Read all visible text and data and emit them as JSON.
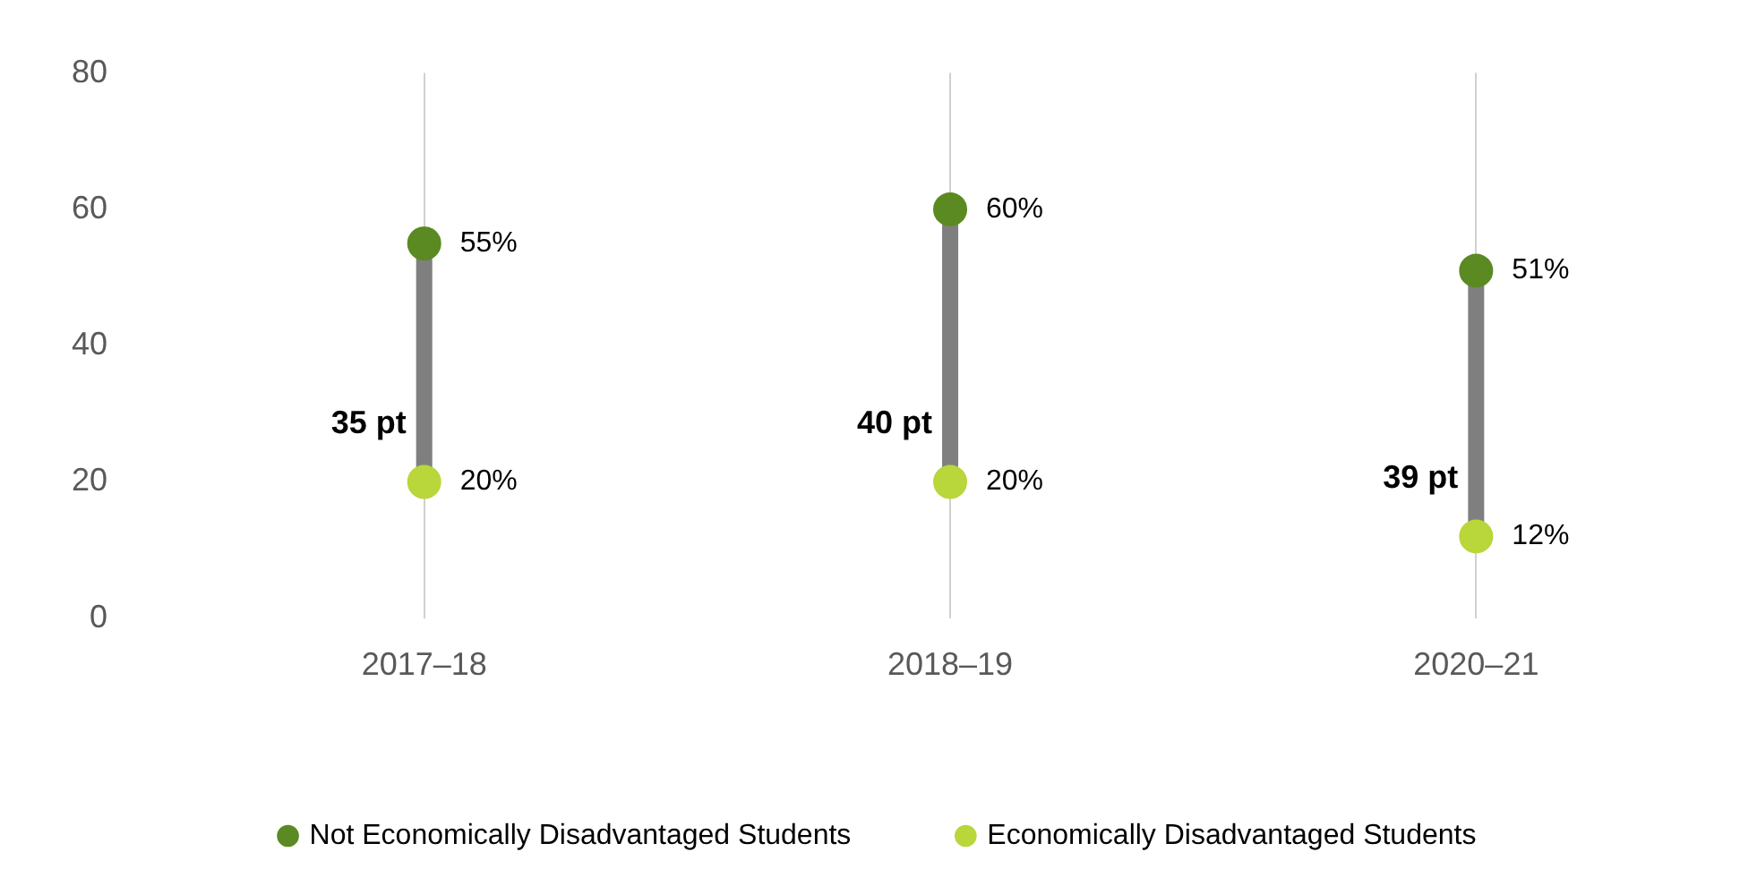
{
  "chart_data": {
    "type": "scatter",
    "categories": [
      "2017–18",
      "2018–19",
      "2020–21"
    ],
    "series": [
      {
        "name": "Not Economically Disadvantaged Students",
        "color": "#5b8a23",
        "x": [
          "2017–18",
          "2018–19",
          "2020–21"
        ],
        "values": [
          55,
          60,
          51
        ],
        "value_labels": [
          "55%",
          "60%",
          "51%"
        ]
      },
      {
        "name": "Economically Disadvantaged Students",
        "color": "#b9d63b",
        "x": [
          "2017–18",
          "2018–19",
          "2020–21"
        ],
        "values": [
          20,
          20,
          12
        ],
        "value_labels": [
          "20%",
          "20%",
          "12%"
        ]
      }
    ],
    "annotations": [
      "35 pt",
      "40 pt",
      "39 pt"
    ],
    "ylim": [
      0,
      80
    ],
    "yticks": [
      0,
      20,
      40,
      60,
      80
    ],
    "grid": "x",
    "legend": "bottom",
    "marker": "circle"
  }
}
